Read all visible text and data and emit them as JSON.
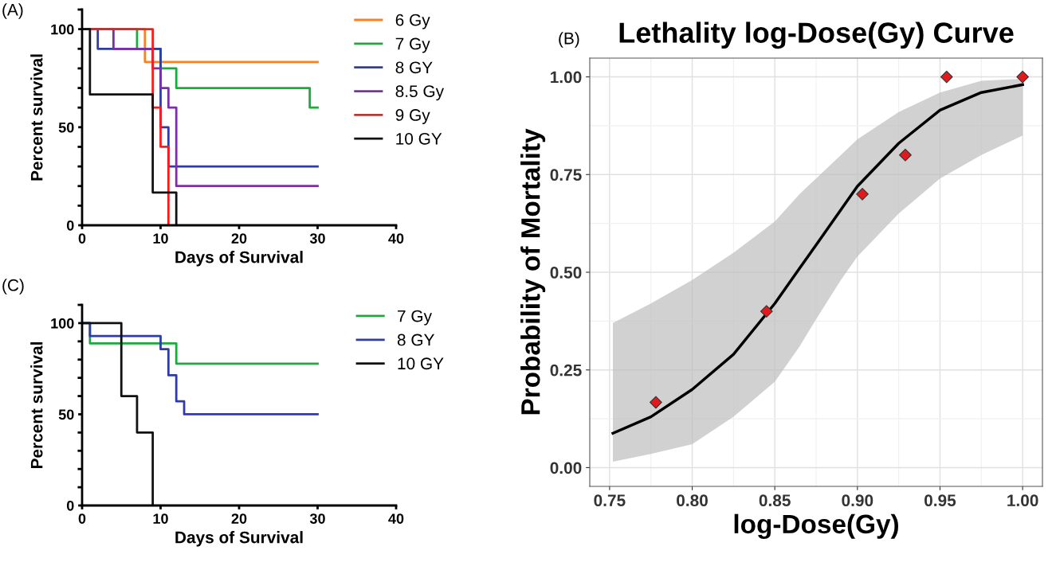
{
  "chart_data": [
    {
      "type": "step",
      "xlabel": "Days of Survival",
      "ylabel": "Percent survival",
      "annotations": [
        "(A)"
      ],
      "xlim": [
        0,
        40
      ],
      "xticks": [
        0,
        10,
        20,
        30,
        40
      ],
      "ylim": [
        0,
        110
      ],
      "yticks": [
        0,
        50,
        100
      ],
      "legend": "top right",
      "grid": false,
      "series": [
        {
          "name": "6 Gy",
          "color": "#ff7f1e",
          "x": [
            0,
            8,
            30
          ],
          "values": [
            100,
            83.3,
            83.3
          ]
        },
        {
          "name": "7 Gy",
          "color": "#1aab3c",
          "x": [
            0,
            7,
            10,
            12,
            29,
            30
          ],
          "values": [
            100,
            90,
            80,
            70,
            60,
            60
          ]
        },
        {
          "name": "8 GY",
          "color": "#2e3ba8",
          "x": [
            0,
            2,
            10,
            11,
            30
          ],
          "values": [
            100,
            90,
            50,
            30,
            30
          ]
        },
        {
          "name": "8.5 Gy",
          "color": "#7b2fa8",
          "x": [
            0,
            4,
            9,
            10,
            11,
            12,
            30
          ],
          "values": [
            100,
            90,
            80,
            70,
            60,
            20,
            20
          ]
        },
        {
          "name": "9 Gy",
          "color": "#ff1a1a",
          "x": [
            0,
            9,
            10,
            11
          ],
          "values": [
            100,
            60,
            40,
            0
          ]
        },
        {
          "name": "10 GY",
          "color": "#111111",
          "x": [
            0,
            1,
            9,
            12
          ],
          "values": [
            100,
            66.7,
            16.7,
            0
          ]
        }
      ]
    },
    {
      "type": "line",
      "title": "Lethality log-Dose(Gy) Curve",
      "xlabel": "log-Dose(Gy)",
      "ylabel": "Probability of Mortality",
      "annotations": [
        "(B)"
      ],
      "xlim": [
        0.738,
        1.012
      ],
      "xticks": [
        {
          "value": 0.75,
          "label": "0.75"
        },
        {
          "value": 0.8,
          "label": "0.80"
        },
        {
          "value": 0.85,
          "label": "0.85"
        },
        {
          "value": 0.9,
          "label": "0.90"
        },
        {
          "value": 0.95,
          "label": "0.95"
        },
        {
          "value": 1.0,
          "label": "1.00"
        }
      ],
      "ylim": [
        -0.048,
        1.048
      ],
      "yticks": [
        {
          "value": 0,
          "label": "0.00"
        },
        {
          "value": 0.25,
          "label": "0.25"
        },
        {
          "value": 0.5,
          "label": "0.50"
        },
        {
          "value": 0.75,
          "label": "0.75"
        },
        {
          "value": 1.0,
          "label": "1.00"
        }
      ],
      "grid": true,
      "series": [
        {
          "type": "line",
          "color": "#000000",
          "x": [
            0.752,
            0.775,
            0.8,
            0.825,
            0.85,
            0.865,
            0.875,
            0.89,
            0.9,
            0.925,
            0.95,
            0.975,
            1.0
          ],
          "values": [
            0.088,
            0.13,
            0.2,
            0.29,
            0.42,
            0.51,
            0.57,
            0.66,
            0.72,
            0.83,
            0.915,
            0.96,
            0.98
          ],
          "lower": [
            0.015,
            0.035,
            0.06,
            0.13,
            0.22,
            0.31,
            0.38,
            0.48,
            0.54,
            0.65,
            0.74,
            0.8,
            0.85
          ],
          "upper": [
            0.37,
            0.42,
            0.48,
            0.55,
            0.63,
            0.7,
            0.74,
            0.8,
            0.84,
            0.91,
            0.96,
            0.99,
            0.995
          ]
        },
        {
          "type": "scatter",
          "color": "#e31a1c",
          "marker": "diamond",
          "x": [
            0.778,
            0.845,
            0.903,
            0.929,
            0.954,
            1.0
          ],
          "values": [
            0.167,
            0.4,
            0.7,
            0.8,
            1.0,
            1.0
          ]
        }
      ]
    },
    {
      "type": "step",
      "xlabel": "Days of Survival",
      "ylabel": "Percent survival",
      "annotations": [
        "(C)"
      ],
      "xlim": [
        0,
        40
      ],
      "xticks": [
        0,
        10,
        20,
        30,
        40
      ],
      "ylim": [
        0,
        110
      ],
      "yticks": [
        0,
        50,
        100
      ],
      "legend": "top right",
      "grid": false,
      "series": [
        {
          "name": "7 Gy",
          "color": "#1aab3c",
          "x": [
            0,
            1,
            12,
            30
          ],
          "values": [
            100,
            88.9,
            77.8,
            77.8
          ]
        },
        {
          "name": "8 GY",
          "color": "#2e3ba8",
          "x": [
            0,
            1,
            10,
            11,
            12,
            13,
            30
          ],
          "values": [
            100,
            92.9,
            85.7,
            71.4,
            57.1,
            50,
            50
          ]
        },
        {
          "name": "10 GY",
          "color": "#111111",
          "x": [
            0,
            5,
            7,
            9
          ],
          "values": [
            100,
            60,
            40,
            0
          ]
        }
      ]
    }
  ]
}
